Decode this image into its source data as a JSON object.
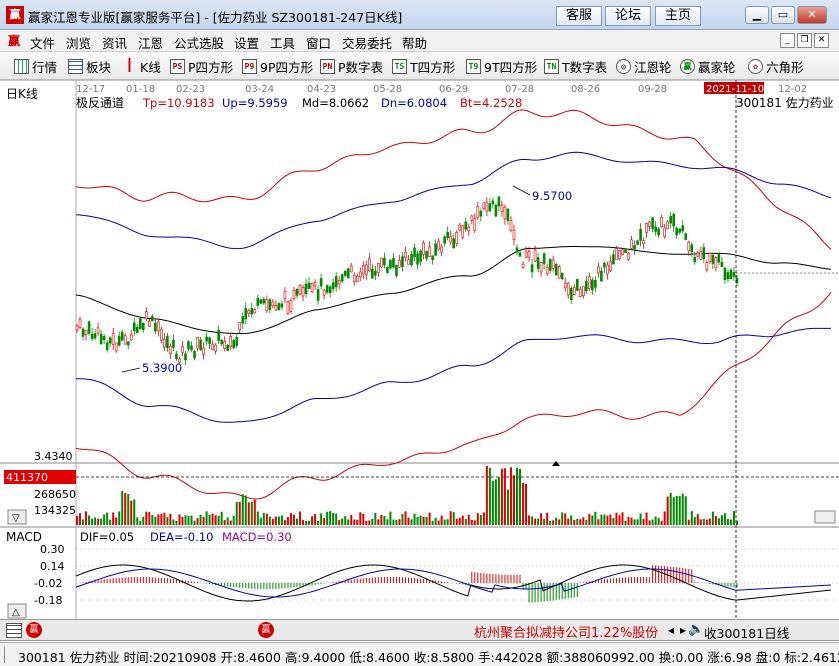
{
  "window": {
    "logo_glyph": "赢",
    "title": "赢家江恩专业版[赢家服务平台] - [佐力药业  SZ300181-247日K线]",
    "buttons": [
      "客服",
      "论坛",
      "主页"
    ]
  },
  "menu": {
    "logo_glyph": "赢",
    "items": [
      "文件",
      "浏览",
      "资讯",
      "江恩",
      "公式选股",
      "设置",
      "工具",
      "窗口",
      "交易委托",
      "帮助"
    ]
  },
  "toolbar": {
    "items": [
      {
        "label": "行情",
        "icon": "grid-icon",
        "glyph": ""
      },
      {
        "label": "板块",
        "icon": "block-icon",
        "glyph": ""
      },
      {
        "label": "K线",
        "icon": "candlestick-icon",
        "glyph": "┃"
      },
      {
        "label": "P四方形",
        "icon": "ps-icon",
        "glyph": "PS"
      },
      {
        "label": "9P四方形",
        "icon": "9p-icon",
        "glyph": "P9"
      },
      {
        "label": "P数字表",
        "icon": "pn-icon",
        "glyph": "PN"
      },
      {
        "label": "T四方形",
        "icon": "ts-icon",
        "glyph": "TS"
      },
      {
        "label": "9T四方形",
        "icon": "t9-icon",
        "glyph": "T9"
      },
      {
        "label": "T数字表",
        "icon": "tn-icon",
        "glyph": "TN"
      },
      {
        "label": "江恩轮",
        "icon": "gann-wheel-icon",
        "glyph": "◎"
      },
      {
        "label": "赢家轮",
        "icon": "winner-wheel-icon",
        "glyph": "赢"
      },
      {
        "label": "六角形",
        "icon": "hexagon-icon",
        "glyph": "✿"
      }
    ]
  },
  "chart": {
    "period_label": "日K线",
    "dates": [
      "12-17",
      "01-18",
      "02-23",
      "03-24",
      "04-23",
      "05-28",
      "06-29",
      "07-28",
      "08-26",
      "09-28",
      "2021-11-10",
      "12-02"
    ],
    "indicator_name": "极反通道",
    "tp": "Tp=10.9183",
    "up": "Up=9.5959",
    "md": "Md=8.0662",
    "dn": "Dn=6.0804",
    "bt": "Bt=4.2528",
    "stock_label": "300181 佐力药业",
    "high_label": "9.5700",
    "low_label": "5.3900",
    "price_axis_label": "3.4340",
    "volume_current": "411370",
    "volume_tick_1": "268650",
    "volume_tick_2": "134325",
    "macd_label": "MACD",
    "dif": "DIF=0.05",
    "dea": "DEA=-0.10",
    "macd": "MACD=0.30",
    "macd_ticks": [
      "0.30",
      "0.14",
      "-0.02",
      "-0.18"
    ],
    "colors": {
      "up": "#e00000",
      "down": "#008800",
      "channel_outer": "#d00000",
      "channel_inner": "#0000b0",
      "mid": "#000000"
    }
  },
  "tabs": {
    "news": "杭州聚合拟减持公司1.22%股份",
    "close_label": "收300181日线"
  },
  "status": {
    "text": "300181 佐力药业 时间:20210908 开:8.4600 高:9.4000 低:8.4600 收:8.5800 手:442028 额:388060992.00 换:0.00 涨:6.98 盘:0 标:2.4612"
  }
}
